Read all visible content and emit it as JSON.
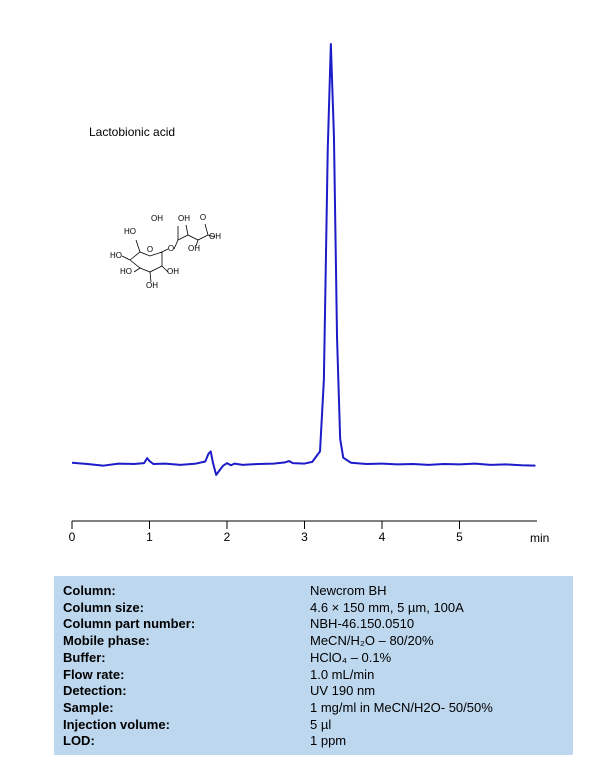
{
  "chart_data": {
    "type": "line",
    "annotation": "Lactobionic acid",
    "structure_labels": [
      "OH",
      "OH",
      "O",
      "HO",
      "OH",
      "OH",
      "O",
      "O",
      "HO",
      "HO",
      "OH",
      "OH"
    ],
    "xlabel": "min",
    "x": [
      0,
      0.2,
      0.4,
      0.6,
      0.8,
      0.93,
      0.97,
      1.0,
      1.05,
      1.2,
      1.4,
      1.6,
      1.72,
      1.76,
      1.79,
      1.82,
      1.86,
      1.9,
      1.95,
      2.0,
      2.05,
      2.1,
      2.2,
      2.4,
      2.6,
      2.75,
      2.8,
      2.85,
      3.0,
      3.1,
      3.2,
      3.25,
      3.3,
      3.34,
      3.38,
      3.42,
      3.46,
      3.5,
      3.6,
      3.8,
      4.0,
      4.2,
      4.4,
      4.6,
      4.8,
      5.0,
      5.2,
      5.4,
      5.6,
      5.8,
      5.98
    ],
    "values": [
      0.3,
      0,
      -0.4,
      0.1,
      0,
      0.2,
      1.4,
      0.7,
      0,
      0.1,
      -0.2,
      0.1,
      0.6,
      2.4,
      3.0,
      0.2,
      -2.6,
      -1.6,
      -0.4,
      0.2,
      -0.3,
      0.1,
      -0.2,
      0,
      0.1,
      0.4,
      0.7,
      0.2,
      0.1,
      0.5,
      3,
      20,
      75,
      100,
      78,
      30,
      6,
      1.5,
      0.3,
      0,
      0.1,
      -0.1,
      0,
      -0.2,
      0,
      -0.1,
      0.1,
      -0.2,
      -0.1,
      -0.3,
      -0.4
    ],
    "color": "#1c1cc8",
    "xlim": [
      0,
      6
    ],
    "xticks": [
      0,
      1,
      2,
      3,
      4,
      5
    ],
    "ylim": [
      -10,
      100
    ]
  },
  "table": {
    "rows": [
      [
        "Column:",
        "Newcrom  BH"
      ],
      [
        "Column size:",
        "4.6 × 150 mm, 5 µm, 100A"
      ],
      [
        "Column part number:",
        "NBH-46.150.0510"
      ],
      [
        "Mobile phase:",
        "MeCN/H₂O – 80/20%"
      ],
      [
        "Buffer:",
        "HClO₄ – 0.1%"
      ],
      [
        "Flow rate:",
        "1.0 mL/min"
      ],
      [
        "Detection:",
        "UV  190 nm"
      ],
      [
        "Sample:",
        "1 mg/ml in MeCN/H2O- 50/50%"
      ],
      [
        "Injection volume:",
        "5 µl"
      ],
      [
        "LOD:",
        "1 ppm"
      ]
    ]
  }
}
